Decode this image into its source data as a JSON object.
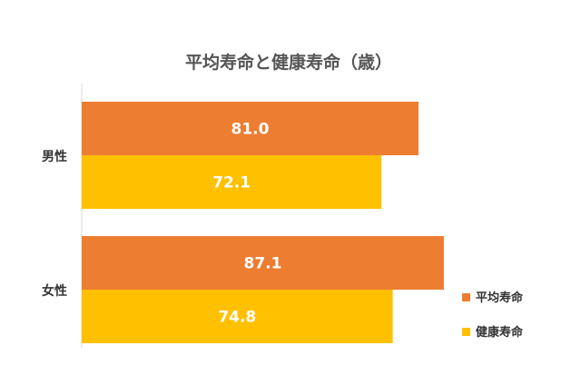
{
  "chart_data": {
    "type": "bar",
    "orientation": "horizontal",
    "title": "平均寿命と健康寿命（歳）",
    "categories": [
      "男性",
      "女性"
    ],
    "series": [
      {
        "name": "平均寿命",
        "values": [
          81.0,
          87.1
        ],
        "labels": [
          "81.0",
          "87.1"
        ],
        "color": "#ED7D31"
      },
      {
        "name": "健康寿命",
        "values": [
          72.1,
          74.8
        ],
        "labels": [
          "72.1",
          "74.8"
        ],
        "color": "#FFC000"
      }
    ],
    "xlim": [
      0,
      94
    ],
    "grid": false,
    "legend_position": "right"
  }
}
